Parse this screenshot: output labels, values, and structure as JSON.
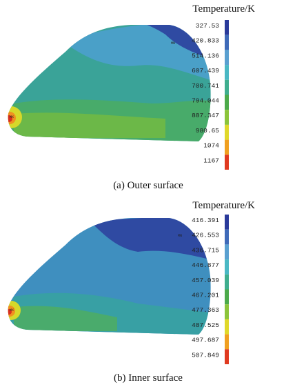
{
  "panels": [
    {
      "legend_title": "Temperature/K",
      "scale_labels": [
        "327.53",
        "420.833",
        "514.136",
        "607.439",
        "700.741",
        "794.044",
        "887.347",
        "980.65",
        "1074",
        "1167"
      ],
      "markers": [
        "MN",
        "MX"
      ],
      "caption": "(a) Outer surface"
    },
    {
      "legend_title": "Temperature/K",
      "scale_labels": [
        "416.391",
        "426.553",
        "436.715",
        "446.877",
        "457.039",
        "467.201",
        "477.363",
        "487.525",
        "497.687",
        "507.849"
      ],
      "markers": [
        "MN",
        "MX"
      ],
      "caption": "(b) Inner surface"
    }
  ]
}
